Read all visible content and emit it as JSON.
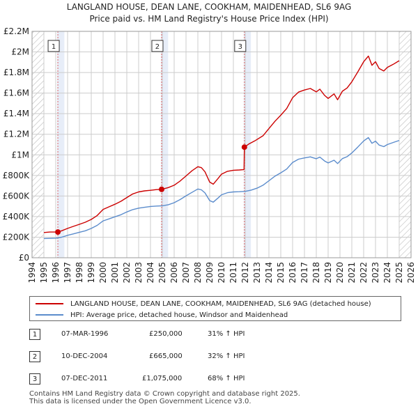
{
  "title_line1": "LANGLAND HOUSE, DEAN LANE, COOKHAM, MAIDENHEAD, SL6 9AG",
  "title_line2": "Price paid vs. HM Land Registry's House Price Index (HPI)",
  "colors": {
    "price": "#cc0000",
    "hpi": "#5b8ccc",
    "grid": "#cccccc",
    "shade": "#dde6f5",
    "marker_line": "#e06666"
  },
  "chart_data": {
    "type": "line",
    "xlim": [
      1994,
      2026
    ],
    "ylim": [
      0,
      2200000
    ],
    "x_ticks": [
      "1994",
      "1995",
      "1996",
      "1997",
      "1998",
      "1999",
      "2000",
      "2001",
      "2002",
      "2003",
      "2004",
      "2005",
      "2006",
      "2007",
      "2008",
      "2009",
      "2010",
      "2011",
      "2012",
      "2013",
      "2014",
      "2015",
      "2016",
      "2017",
      "2018",
      "2019",
      "2020",
      "2021",
      "2022",
      "2023",
      "2024",
      "2025",
      "2026"
    ],
    "y_ticks": [
      {
        "value": 0,
        "label": "£0"
      },
      {
        "value": 200000,
        "label": "£200K"
      },
      {
        "value": 400000,
        "label": "£400K"
      },
      {
        "value": 600000,
        "label": "£600K"
      },
      {
        "value": 800000,
        "label": "£800K"
      },
      {
        "value": 1000000,
        "label": "£1M"
      },
      {
        "value": 1200000,
        "label": "£1.2M"
      },
      {
        "value": 1400000,
        "label": "£1.4M"
      },
      {
        "value": 1600000,
        "label": "£1.6M"
      },
      {
        "value": 1800000,
        "label": "£1.8M"
      },
      {
        "value": 2000000,
        "label": "£2M"
      },
      {
        "value": 2200000,
        "label": "£2.2M"
      }
    ],
    "hatched_ranges": [
      [
        1994,
        1995
      ],
      [
        2025,
        2026
      ]
    ],
    "series": [
      {
        "name": "LANGLAND HOUSE, DEAN LANE, COOKHAM, MAIDENHEAD, SL6 9AG (detached house)",
        "color": "#cc0000",
        "points": [
          [
            1995.0,
            245000
          ],
          [
            1995.5,
            250000
          ],
          [
            1996.18,
            250000
          ],
          [
            1996.5,
            262000
          ],
          [
            1997.0,
            285000
          ],
          [
            1997.5,
            305000
          ],
          [
            1998.0,
            325000
          ],
          [
            1998.5,
            345000
          ],
          [
            1999.0,
            372000
          ],
          [
            1999.5,
            410000
          ],
          [
            2000.0,
            470000
          ],
          [
            2000.5,
            495000
          ],
          [
            2001.0,
            520000
          ],
          [
            2001.5,
            548000
          ],
          [
            2002.0,
            585000
          ],
          [
            2002.5,
            620000
          ],
          [
            2003.0,
            640000
          ],
          [
            2003.5,
            650000
          ],
          [
            2004.0,
            655000
          ],
          [
            2004.5,
            662000
          ],
          [
            2004.94,
            665000
          ],
          [
            2005.5,
            682000
          ],
          [
            2006.0,
            705000
          ],
          [
            2006.5,
            745000
          ],
          [
            2007.0,
            795000
          ],
          [
            2007.5,
            845000
          ],
          [
            2008.0,
            885000
          ],
          [
            2008.3,
            875000
          ],
          [
            2008.6,
            835000
          ],
          [
            2009.0,
            735000
          ],
          [
            2009.3,
            715000
          ],
          [
            2009.7,
            770000
          ],
          [
            2010.0,
            812000
          ],
          [
            2010.5,
            840000
          ],
          [
            2011.0,
            850000
          ],
          [
            2011.5,
            853000
          ],
          [
            2011.9,
            857000
          ],
          [
            2011.93,
            1075000
          ],
          [
            2012.3,
            1105000
          ],
          [
            2012.8,
            1135000
          ],
          [
            2013.5,
            1185000
          ],
          [
            2014.0,
            1255000
          ],
          [
            2014.5,
            1325000
          ],
          [
            2015.0,
            1385000
          ],
          [
            2015.5,
            1450000
          ],
          [
            2016.0,
            1555000
          ],
          [
            2016.5,
            1610000
          ],
          [
            2017.0,
            1630000
          ],
          [
            2017.5,
            1645000
          ],
          [
            2018.0,
            1612000
          ],
          [
            2018.3,
            1638000
          ],
          [
            2018.7,
            1578000
          ],
          [
            2019.0,
            1548000
          ],
          [
            2019.5,
            1592000
          ],
          [
            2019.8,
            1535000
          ],
          [
            2020.2,
            1618000
          ],
          [
            2020.6,
            1650000
          ],
          [
            2021.0,
            1710000
          ],
          [
            2021.5,
            1805000
          ],
          [
            2022.0,
            1905000
          ],
          [
            2022.4,
            1960000
          ],
          [
            2022.7,
            1870000
          ],
          [
            2023.0,
            1905000
          ],
          [
            2023.3,
            1840000
          ],
          [
            2023.7,
            1815000
          ],
          [
            2024.0,
            1850000
          ],
          [
            2024.5,
            1880000
          ],
          [
            2025.0,
            1915000
          ]
        ]
      },
      {
        "name": "HPI: Average price, detached house, Windsor and Maidenhead",
        "color": "#5b8ccc",
        "points": [
          [
            1995.0,
            187000
          ],
          [
            1995.5,
            188000
          ],
          [
            1996.0,
            190000
          ],
          [
            1996.5,
            200000
          ],
          [
            1997.0,
            218000
          ],
          [
            1997.5,
            232000
          ],
          [
            1998.0,
            248000
          ],
          [
            1998.5,
            262000
          ],
          [
            1999.0,
            285000
          ],
          [
            1999.5,
            315000
          ],
          [
            2000.0,
            358000
          ],
          [
            2000.5,
            378000
          ],
          [
            2001.0,
            398000
          ],
          [
            2001.5,
            418000
          ],
          [
            2002.0,
            445000
          ],
          [
            2002.5,
            468000
          ],
          [
            2003.0,
            482000
          ],
          [
            2003.5,
            490000
          ],
          [
            2004.0,
            498000
          ],
          [
            2004.5,
            502000
          ],
          [
            2005.0,
            505000
          ],
          [
            2005.5,
            515000
          ],
          [
            2006.0,
            535000
          ],
          [
            2006.5,
            565000
          ],
          [
            2007.0,
            602000
          ],
          [
            2007.5,
            635000
          ],
          [
            2008.0,
            668000
          ],
          [
            2008.3,
            660000
          ],
          [
            2008.6,
            630000
          ],
          [
            2009.0,
            555000
          ],
          [
            2009.3,
            540000
          ],
          [
            2009.7,
            580000
          ],
          [
            2010.0,
            612000
          ],
          [
            2010.5,
            632000
          ],
          [
            2011.0,
            640000
          ],
          [
            2011.5,
            642000
          ],
          [
            2012.0,
            645000
          ],
          [
            2012.5,
            657000
          ],
          [
            2013.0,
            676000
          ],
          [
            2013.5,
            705000
          ],
          [
            2014.0,
            748000
          ],
          [
            2014.5,
            792000
          ],
          [
            2015.0,
            825000
          ],
          [
            2015.5,
            862000
          ],
          [
            2016.0,
            926000
          ],
          [
            2016.5,
            958000
          ],
          [
            2017.0,
            970000
          ],
          [
            2017.5,
            980000
          ],
          [
            2018.0,
            962000
          ],
          [
            2018.3,
            978000
          ],
          [
            2018.7,
            940000
          ],
          [
            2019.0,
            921000
          ],
          [
            2019.5,
            948000
          ],
          [
            2019.8,
            915000
          ],
          [
            2020.2,
            963000
          ],
          [
            2020.6,
            982000
          ],
          [
            2021.0,
            1018000
          ],
          [
            2021.5,
            1075000
          ],
          [
            2022.0,
            1135000
          ],
          [
            2022.4,
            1168000
          ],
          [
            2022.7,
            1112000
          ],
          [
            2023.0,
            1133000
          ],
          [
            2023.3,
            1095000
          ],
          [
            2023.7,
            1080000
          ],
          [
            2024.0,
            1100000
          ],
          [
            2024.5,
            1120000
          ],
          [
            2025.0,
            1140000
          ]
        ]
      }
    ],
    "sales": [
      {
        "num": "1",
        "x": 1996.18,
        "y": 250000
      },
      {
        "num": "2",
        "x": 2004.94,
        "y": 665000
      },
      {
        "num": "3",
        "x": 2011.93,
        "y": 1075000
      }
    ]
  },
  "legend": {
    "price_label": "LANGLAND HOUSE, DEAN LANE, COOKHAM, MAIDENHEAD, SL6 9AG (detached house)",
    "hpi_label": "HPI: Average price, detached house, Windsor and Maidenhead"
  },
  "transactions": [
    {
      "num": "1",
      "date": "07-MAR-1996",
      "price": "£250,000",
      "hpi": "31% ↑ HPI"
    },
    {
      "num": "2",
      "date": "10-DEC-2004",
      "price": "£665,000",
      "hpi": "32% ↑ HPI"
    },
    {
      "num": "3",
      "date": "07-DEC-2011",
      "price": "£1,075,000",
      "hpi": "68% ↑ HPI"
    }
  ],
  "footer": {
    "line1": "Contains HM Land Registry data © Crown copyright and database right 2025.",
    "line2": "This data is licensed under the Open Government Licence v3.0."
  }
}
